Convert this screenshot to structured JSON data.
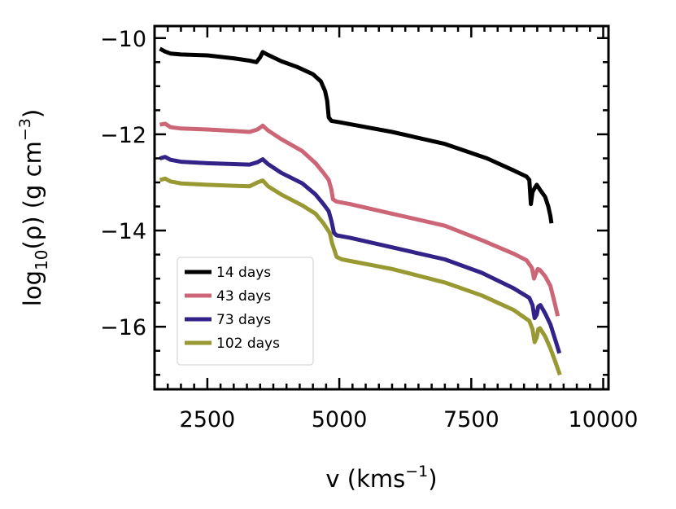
{
  "chart_data": {
    "type": "line",
    "title": "",
    "xlabel": {
      "base": "v (kms",
      "sup": "−1",
      "tail": ")"
    },
    "ylabel": {
      "p1": "log",
      "sub": "10",
      "p2": "(ρ)  (g cm",
      "sup": "−3",
      "p3": ")"
    },
    "xlim": [
      1500,
      10100
    ],
    "ylim": [
      -17.3,
      -9.75
    ],
    "xticks": [
      2500,
      5000,
      7500,
      10000
    ],
    "xtick_labels": [
      "2500",
      "5000",
      "7500",
      "10000"
    ],
    "x_minor_step": 250,
    "yticks": [
      -10,
      -12,
      -14,
      -16
    ],
    "ytick_labels": [
      "−10",
      "−12",
      "−14",
      "−16"
    ],
    "y_minor_step": 0.5,
    "legend_position": "lower-left",
    "series": [
      {
        "name": "14 days",
        "color": "#000000",
        "points": [
          [
            1600,
            -10.22
          ],
          [
            1700,
            -10.28
          ],
          [
            1800,
            -10.32
          ],
          [
            2000,
            -10.34
          ],
          [
            2500,
            -10.36
          ],
          [
            3000,
            -10.42
          ],
          [
            3300,
            -10.47
          ],
          [
            3430,
            -10.5
          ],
          [
            3500,
            -10.4
          ],
          [
            3550,
            -10.29
          ],
          [
            3650,
            -10.35
          ],
          [
            3900,
            -10.48
          ],
          [
            4200,
            -10.6
          ],
          [
            4500,
            -10.75
          ],
          [
            4650,
            -10.9
          ],
          [
            4730,
            -11.1
          ],
          [
            4770,
            -11.3
          ],
          [
            4800,
            -11.65
          ],
          [
            4850,
            -11.72
          ],
          [
            5000,
            -11.75
          ],
          [
            6000,
            -11.95
          ],
          [
            7000,
            -12.2
          ],
          [
            7800,
            -12.5
          ],
          [
            8300,
            -12.75
          ],
          [
            8550,
            -12.88
          ],
          [
            8600,
            -12.95
          ],
          [
            8630,
            -13.45
          ],
          [
            8660,
            -13.2
          ],
          [
            8700,
            -13.12
          ],
          [
            8740,
            -13.05
          ],
          [
            8800,
            -13.15
          ],
          [
            8900,
            -13.3
          ],
          [
            8960,
            -13.5
          ],
          [
            9000,
            -13.7
          ],
          [
            9020,
            -13.85
          ]
        ]
      },
      {
        "name": "43 days",
        "color": "#cc6677",
        "points": [
          [
            1600,
            -11.8
          ],
          [
            1700,
            -11.78
          ],
          [
            1800,
            -11.85
          ],
          [
            2000,
            -11.88
          ],
          [
            2500,
            -11.9
          ],
          [
            3000,
            -11.93
          ],
          [
            3300,
            -11.95
          ],
          [
            3450,
            -11.9
          ],
          [
            3550,
            -11.82
          ],
          [
            3650,
            -11.92
          ],
          [
            3900,
            -12.1
          ],
          [
            4300,
            -12.35
          ],
          [
            4550,
            -12.6
          ],
          [
            4700,
            -12.8
          ],
          [
            4800,
            -12.95
          ],
          [
            4850,
            -13.15
          ],
          [
            4880,
            -13.35
          ],
          [
            4950,
            -13.4
          ],
          [
            5200,
            -13.45
          ],
          [
            6000,
            -13.65
          ],
          [
            7000,
            -13.9
          ],
          [
            7700,
            -14.2
          ],
          [
            8300,
            -14.48
          ],
          [
            8550,
            -14.62
          ],
          [
            8650,
            -14.78
          ],
          [
            8690,
            -15.0
          ],
          [
            8720,
            -14.9
          ],
          [
            8760,
            -14.8
          ],
          [
            8800,
            -14.82
          ],
          [
            8900,
            -14.95
          ],
          [
            9000,
            -15.15
          ],
          [
            9080,
            -15.5
          ],
          [
            9140,
            -15.78
          ]
        ]
      },
      {
        "name": "73 days",
        "color": "#332288",
        "points": [
          [
            1600,
            -12.5
          ],
          [
            1700,
            -12.47
          ],
          [
            1800,
            -12.53
          ],
          [
            2000,
            -12.57
          ],
          [
            2500,
            -12.6
          ],
          [
            3000,
            -12.62
          ],
          [
            3300,
            -12.63
          ],
          [
            3450,
            -12.58
          ],
          [
            3550,
            -12.52
          ],
          [
            3650,
            -12.62
          ],
          [
            3900,
            -12.8
          ],
          [
            4300,
            -13.02
          ],
          [
            4550,
            -13.25
          ],
          [
            4700,
            -13.45
          ],
          [
            4800,
            -13.6
          ],
          [
            4850,
            -13.8
          ],
          [
            4900,
            -14.05
          ],
          [
            4950,
            -14.1
          ],
          [
            5200,
            -14.15
          ],
          [
            6000,
            -14.35
          ],
          [
            7000,
            -14.6
          ],
          [
            7700,
            -14.88
          ],
          [
            8300,
            -15.2
          ],
          [
            8600,
            -15.4
          ],
          [
            8660,
            -15.55
          ],
          [
            8700,
            -15.82
          ],
          [
            8740,
            -15.75
          ],
          [
            8770,
            -15.58
          ],
          [
            8810,
            -15.55
          ],
          [
            8900,
            -15.72
          ],
          [
            9000,
            -15.95
          ],
          [
            9100,
            -16.3
          ],
          [
            9170,
            -16.55
          ]
        ]
      },
      {
        "name": "102 days",
        "color": "#999933",
        "points": [
          [
            1600,
            -12.95
          ],
          [
            1700,
            -12.92
          ],
          [
            1800,
            -12.98
          ],
          [
            2000,
            -13.02
          ],
          [
            2500,
            -13.05
          ],
          [
            3000,
            -13.07
          ],
          [
            3300,
            -13.08
          ],
          [
            3450,
            -13.0
          ],
          [
            3550,
            -12.96
          ],
          [
            3650,
            -13.08
          ],
          [
            3900,
            -13.25
          ],
          [
            4300,
            -13.48
          ],
          [
            4550,
            -13.65
          ],
          [
            4700,
            -13.85
          ],
          [
            4820,
            -14.05
          ],
          [
            4860,
            -14.25
          ],
          [
            4950,
            -14.55
          ],
          [
            5050,
            -14.6
          ],
          [
            6000,
            -14.8
          ],
          [
            7000,
            -15.08
          ],
          [
            7700,
            -15.35
          ],
          [
            8300,
            -15.65
          ],
          [
            8600,
            -15.88
          ],
          [
            8660,
            -16.05
          ],
          [
            8700,
            -16.32
          ],
          [
            8740,
            -16.22
          ],
          [
            8770,
            -16.05
          ],
          [
            8800,
            -16.03
          ],
          [
            8900,
            -16.2
          ],
          [
            9000,
            -16.45
          ],
          [
            9100,
            -16.75
          ],
          [
            9180,
            -17.0
          ]
        ]
      }
    ]
  }
}
